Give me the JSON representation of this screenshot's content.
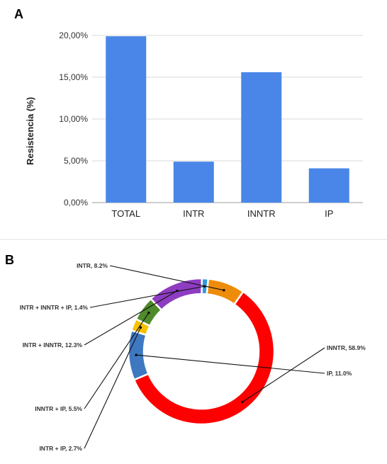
{
  "chart_data": [
    {
      "type": "bar",
      "panel_label": "A",
      "ylabel": "Resistencia (%)",
      "categories": [
        "TOTAL",
        "INTR",
        "INNTR",
        "IP"
      ],
      "values": [
        19.9,
        4.9,
        15.6,
        4.1
      ],
      "ylim": [
        0,
        20
      ],
      "yticks": [
        0,
        5,
        10,
        15,
        20
      ],
      "ytick_labels": [
        "0,00%",
        "5,00%",
        "10,00%",
        "15,00%",
        "20,00%"
      ],
      "grid": true,
      "color": "#4a86e8"
    },
    {
      "type": "pie",
      "style": "donut",
      "panel_label": "B",
      "slices": [
        {
          "label": "INNTR, 58.9%",
          "value": 58.9,
          "color": "#ff0000"
        },
        {
          "label": "IP, 11.0%",
          "value": 11.0,
          "color": "#3d78c0"
        },
        {
          "label": "INTR + IP, 2.7%",
          "value": 2.7,
          "color": "#f6c100"
        },
        {
          "label": "INNTR + IP, 5.5%",
          "value": 5.5,
          "color": "#4f8a2c"
        },
        {
          "label": "INTR + INNTR, 12.3%",
          "value": 12.3,
          "color": "#8e3dc2"
        },
        {
          "label": "INTR + INNTR + IP, 1.4%",
          "value": 1.4,
          "color": "#2f9be0"
        },
        {
          "label": "INTR, 8.2%",
          "value": 8.2,
          "color": "#ee8c0a"
        }
      ]
    }
  ]
}
